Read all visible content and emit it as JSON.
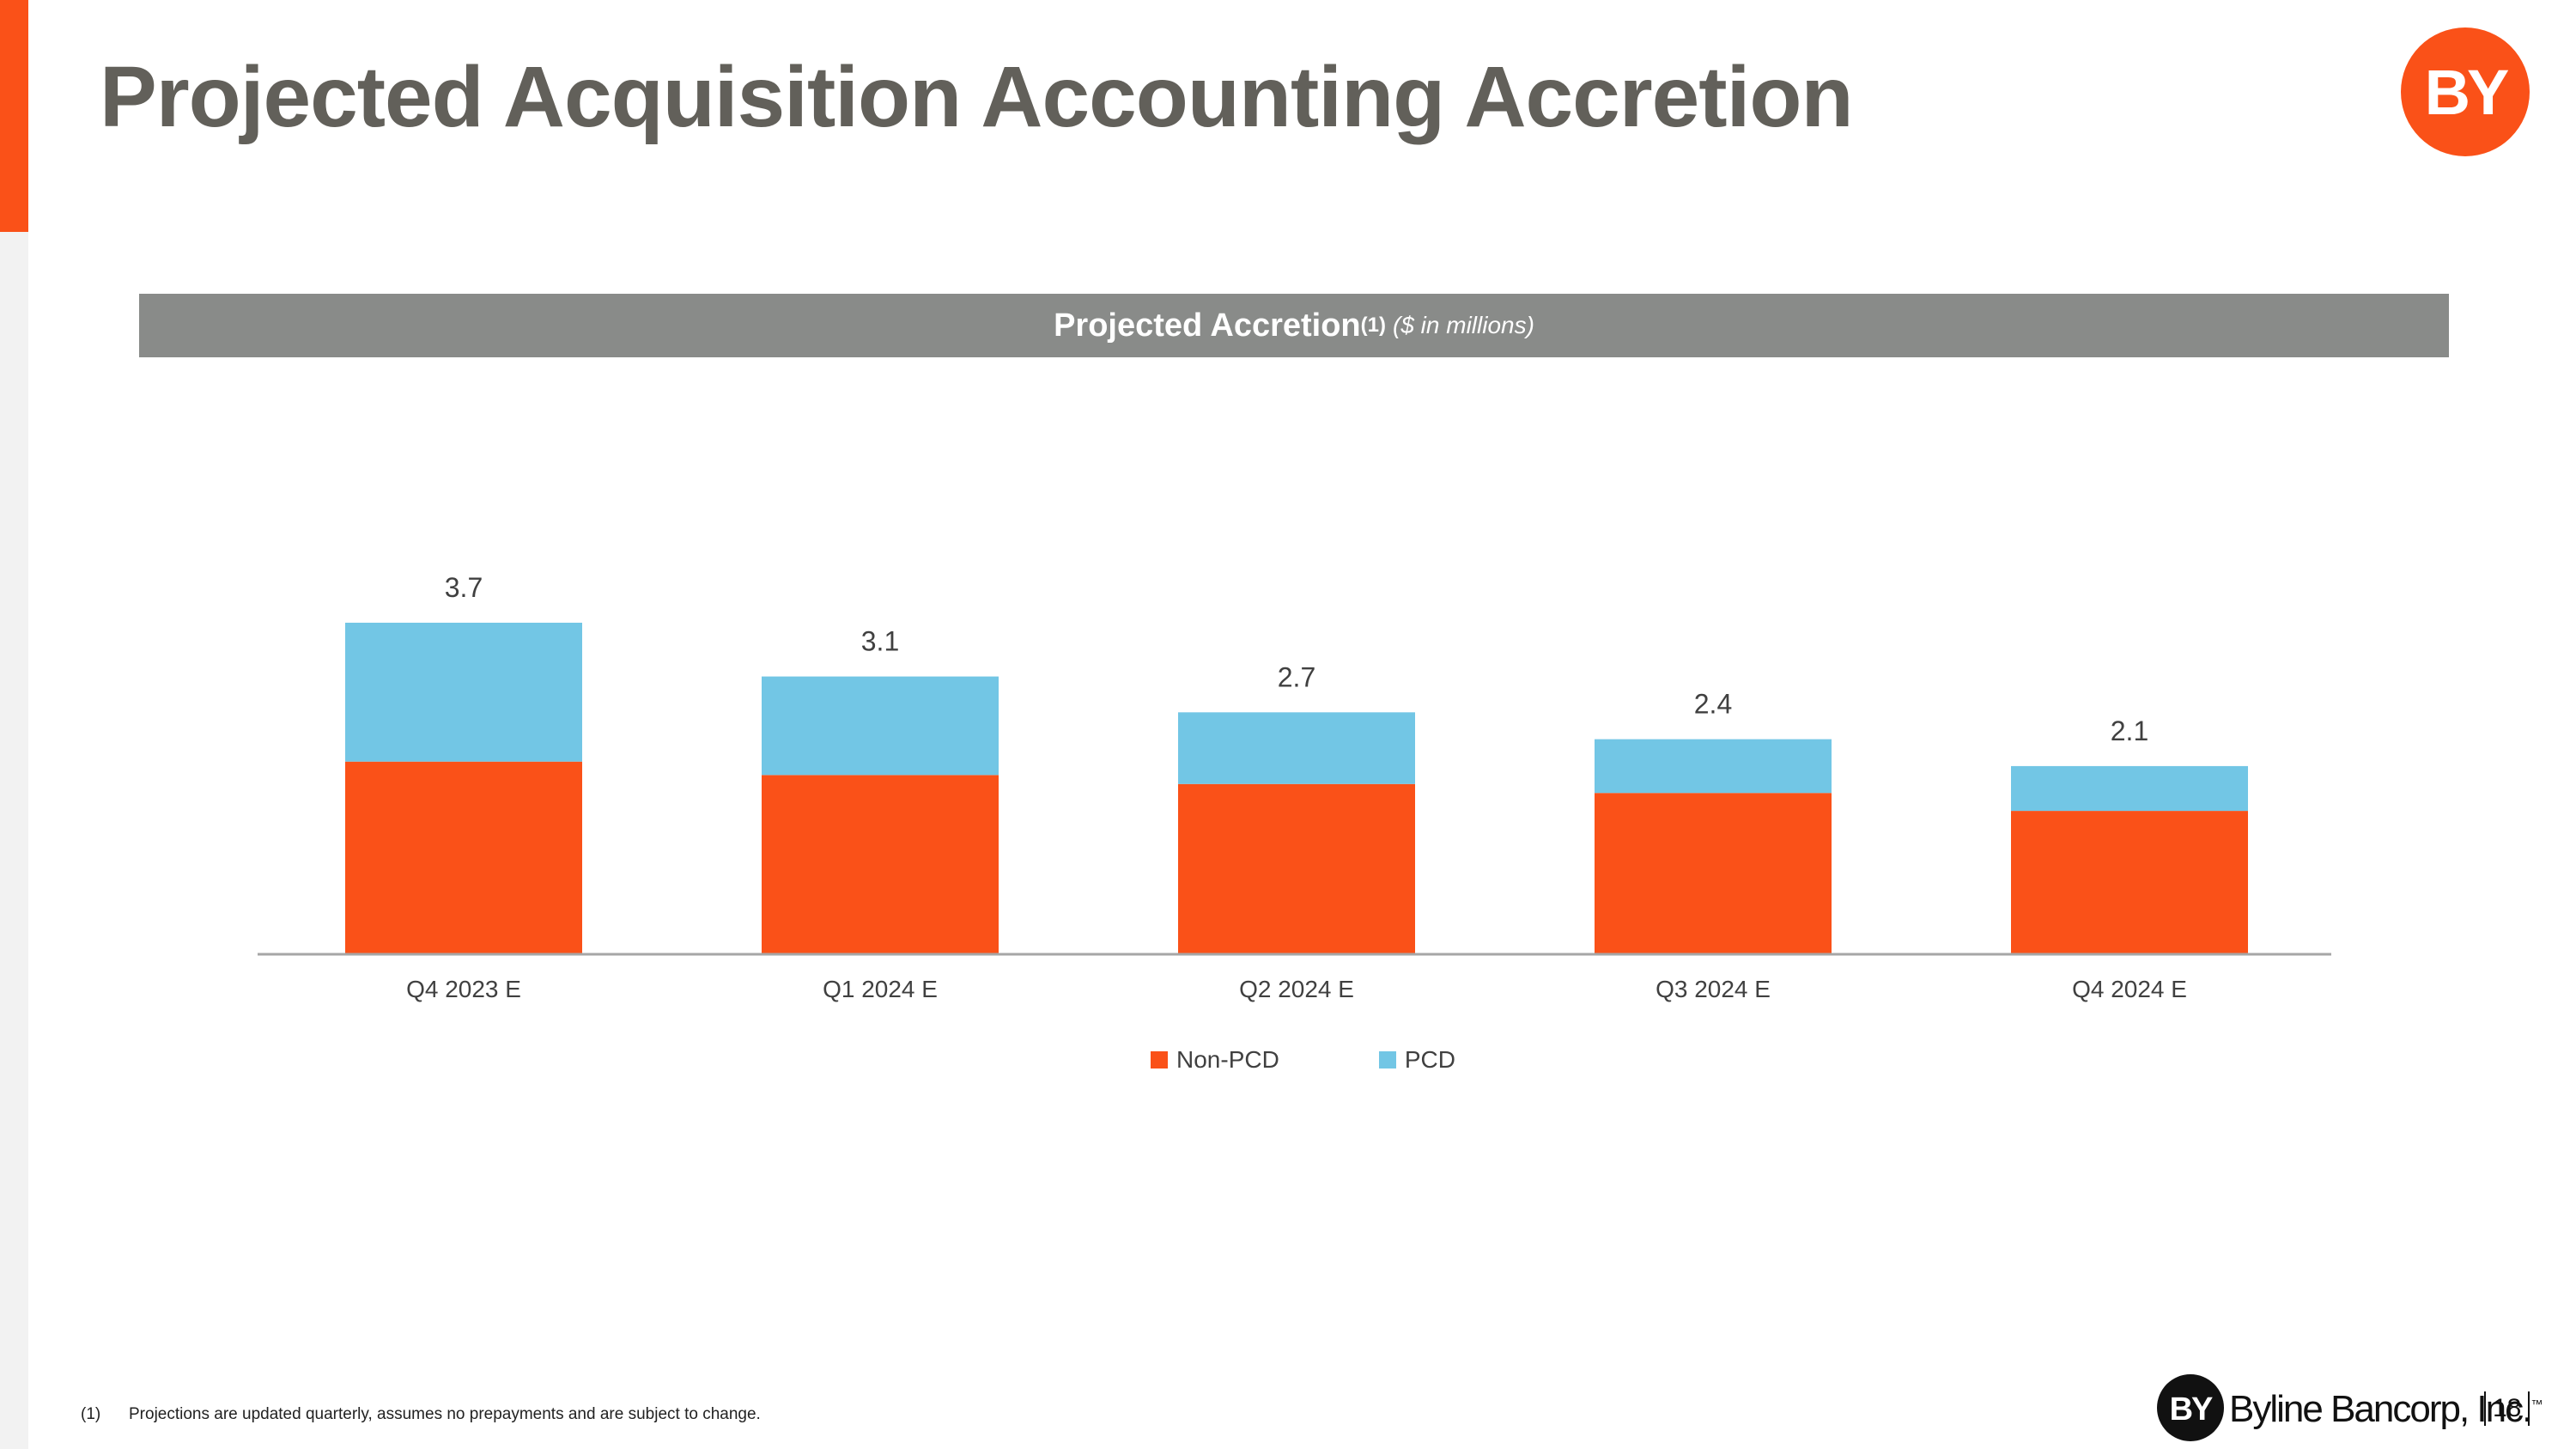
{
  "slide": {
    "title": "Projected Acquisition Accounting Accretion",
    "accent_color": "#fa5118",
    "logo_text": "BY",
    "company_name": "Byline Bancorp, Inc.",
    "trademark": "™",
    "page_number": "18"
  },
  "chart_header": {
    "title": "Projected Accretion",
    "superscript": "(1)",
    "unit": "($ in millions)"
  },
  "chart_data": {
    "type": "bar",
    "stacked": true,
    "title": "Projected Accretion ($ in millions)",
    "xlabel": "",
    "ylabel": "",
    "categories": [
      "Q4 2023 E",
      "Q1 2024 E",
      "Q2 2024 E",
      "Q3 2024 E",
      "Q4 2024 E"
    ],
    "series": [
      {
        "name": "Non-PCD",
        "color": "#fa5118",
        "values": [
          2.15,
          2.0,
          1.9,
          1.8,
          1.6
        ]
      },
      {
        "name": "PCD",
        "color": "#72c6e5",
        "values": [
          1.55,
          1.1,
          0.8,
          0.6,
          0.5
        ]
      }
    ],
    "totals": [
      "3.7",
      "3.1",
      "2.7",
      "2.4",
      "2.1"
    ],
    "ylim": [
      0,
      3.7
    ],
    "grid": false,
    "legend_position": "bottom"
  },
  "footnote": {
    "marker": "(1)",
    "text": "Projections are updated quarterly, assumes no prepayments and are subject to change."
  }
}
